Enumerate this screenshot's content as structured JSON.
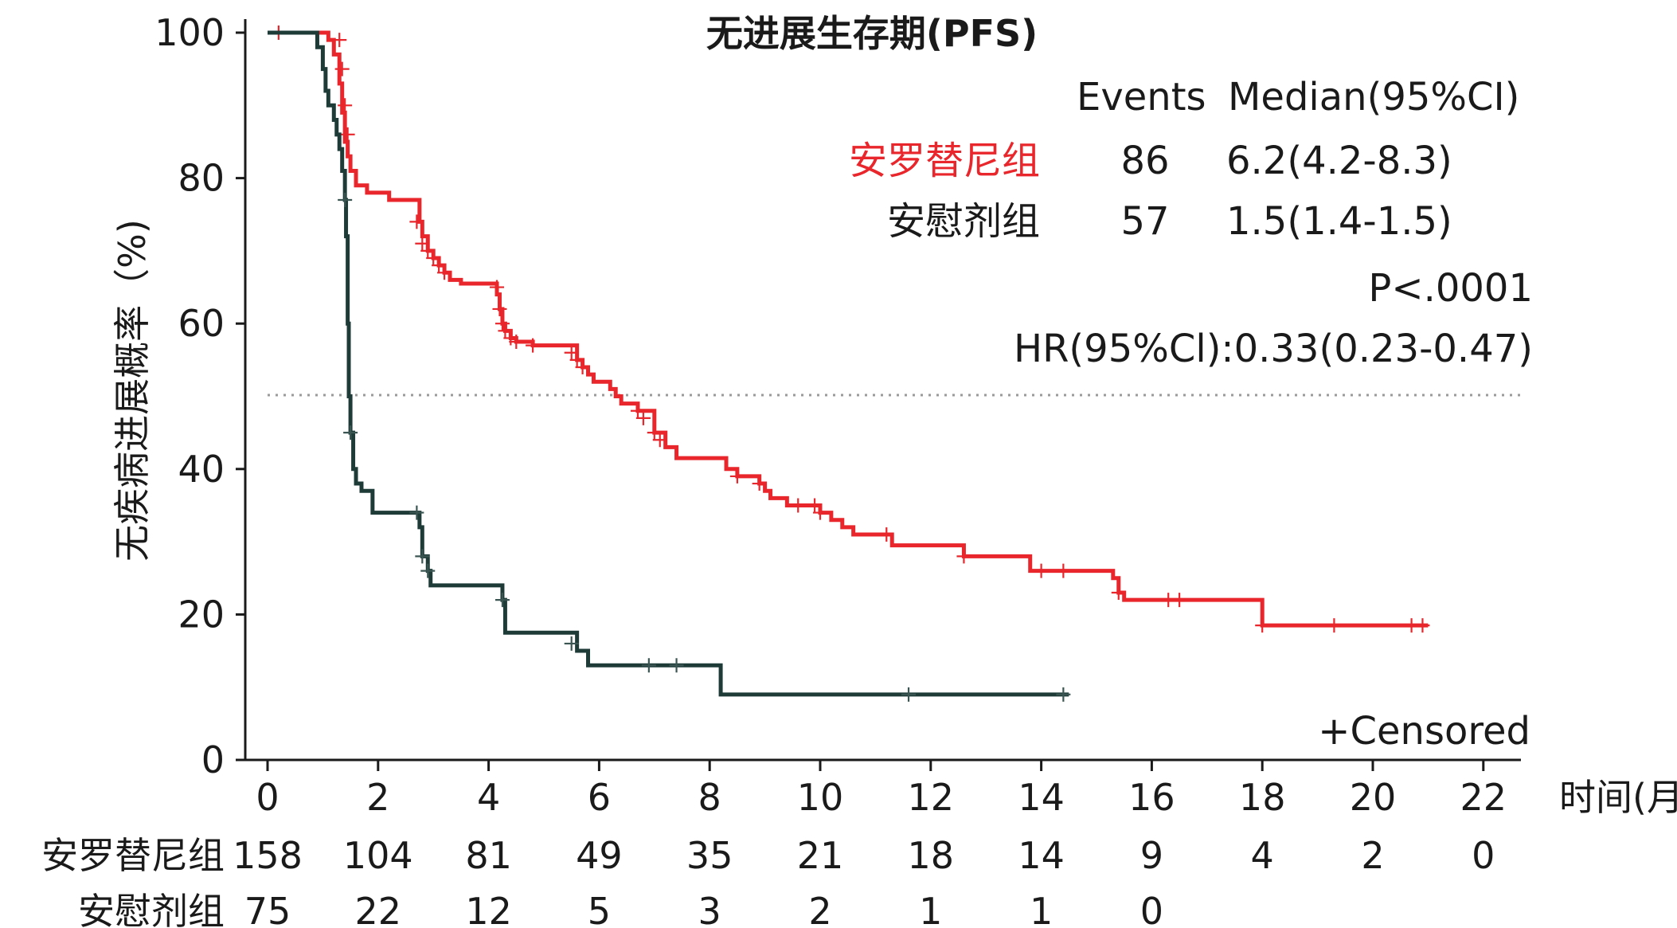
{
  "chart_data": {
    "type": "line",
    "title": "无进展生存期(PFS)",
    "xlabel": "时间(月)",
    "ylabel": "无疾病进展概率（%)",
    "xlim": [
      0,
      22
    ],
    "ylim": [
      0,
      100
    ],
    "x_ticks": [
      "0",
      "2",
      "4",
      "6",
      "8",
      "10",
      "12",
      "14",
      "16",
      "18",
      "20",
      "22"
    ],
    "y_ticks": [
      "0",
      "20",
      "40",
      "60",
      "80",
      "100"
    ],
    "reference_line": 50,
    "legend": {
      "headers": [
        "Events",
        "Median(95%CI)"
      ],
      "rows": [
        {
          "name": "安罗替尼组",
          "events": "86",
          "median": "6.2(4.2-8.3)",
          "color": "#e8262b"
        },
        {
          "name": "安慰剂组",
          "events": "57",
          "median": "1.5(1.4-1.5)",
          "color": "#1e3b38"
        }
      ],
      "p_value": "P<.0001",
      "hr": "HR(95%Cl):0.33(0.23-0.47)"
    },
    "censored_label": "+Censored",
    "series": [
      {
        "name": "安罗替尼组",
        "color": "#e8262b",
        "step_points": [
          [
            0,
            100
          ],
          [
            1.0,
            100
          ],
          [
            1.1,
            99
          ],
          [
            1.2,
            97
          ],
          [
            1.3,
            93
          ],
          [
            1.35,
            89
          ],
          [
            1.4,
            85
          ],
          [
            1.45,
            83
          ],
          [
            1.5,
            81
          ],
          [
            1.6,
            79
          ],
          [
            1.8,
            78
          ],
          [
            2.2,
            77
          ],
          [
            2.7,
            77
          ],
          [
            2.75,
            74
          ],
          [
            2.8,
            72
          ],
          [
            2.9,
            70
          ],
          [
            3.0,
            69
          ],
          [
            3.1,
            68
          ],
          [
            3.2,
            67
          ],
          [
            3.3,
            66
          ],
          [
            3.5,
            65.5
          ],
          [
            4.1,
            65.5
          ],
          [
            4.15,
            64
          ],
          [
            4.2,
            62
          ],
          [
            4.25,
            60
          ],
          [
            4.3,
            59
          ],
          [
            4.4,
            58
          ],
          [
            4.5,
            57.5
          ],
          [
            4.8,
            57
          ],
          [
            5.5,
            57
          ],
          [
            5.6,
            55
          ],
          [
            5.7,
            54
          ],
          [
            5.8,
            53
          ],
          [
            5.9,
            52
          ],
          [
            6.2,
            51
          ],
          [
            6.3,
            50
          ],
          [
            6.4,
            49
          ],
          [
            6.7,
            48
          ],
          [
            7.0,
            45
          ],
          [
            7.2,
            43
          ],
          [
            7.4,
            41.5
          ],
          [
            8.2,
            41.5
          ],
          [
            8.3,
            40
          ],
          [
            8.5,
            39
          ],
          [
            8.9,
            38
          ],
          [
            9.0,
            37
          ],
          [
            9.1,
            36
          ],
          [
            9.4,
            35
          ],
          [
            9.9,
            35
          ],
          [
            10.0,
            34
          ],
          [
            10.2,
            33
          ],
          [
            10.4,
            32
          ],
          [
            10.6,
            31
          ],
          [
            11.2,
            31
          ],
          [
            11.3,
            29.5
          ],
          [
            12.5,
            29.5
          ],
          [
            12.6,
            28
          ],
          [
            13.7,
            28
          ],
          [
            13.8,
            26
          ],
          [
            15.2,
            26
          ],
          [
            15.3,
            25
          ],
          [
            15.4,
            23
          ],
          [
            15.5,
            22
          ],
          [
            17.9,
            22
          ],
          [
            18.0,
            18.5
          ],
          [
            21.0,
            18.5
          ]
        ],
        "censored": [
          [
            0.2,
            100
          ],
          [
            1.3,
            99
          ],
          [
            1.35,
            95
          ],
          [
            1.4,
            90
          ],
          [
            1.45,
            86
          ],
          [
            2.7,
            74
          ],
          [
            2.8,
            71
          ],
          [
            2.9,
            70
          ],
          [
            3.0,
            69
          ],
          [
            3.1,
            68
          ],
          [
            3.2,
            67
          ],
          [
            4.15,
            65
          ],
          [
            4.2,
            62
          ],
          [
            4.25,
            60
          ],
          [
            4.3,
            59
          ],
          [
            4.4,
            58
          ],
          [
            4.5,
            57.5
          ],
          [
            4.8,
            57
          ],
          [
            5.5,
            56
          ],
          [
            5.6,
            55
          ],
          [
            5.7,
            54
          ],
          [
            6.7,
            48
          ],
          [
            6.8,
            47
          ],
          [
            7.0,
            45
          ],
          [
            7.1,
            44
          ],
          [
            8.5,
            39
          ],
          [
            8.9,
            38
          ],
          [
            9.6,
            35
          ],
          [
            9.9,
            35
          ],
          [
            10.0,
            34
          ],
          [
            11.2,
            31
          ],
          [
            12.6,
            28
          ],
          [
            14.0,
            26
          ],
          [
            14.4,
            26
          ],
          [
            15.4,
            23
          ],
          [
            16.3,
            22
          ],
          [
            16.5,
            22
          ],
          [
            18.0,
            18.5
          ],
          [
            19.3,
            18.5
          ],
          [
            20.7,
            18.5
          ],
          [
            20.9,
            18.5
          ]
        ]
      },
      {
        "name": "安慰剂组",
        "color": "#1e3b38",
        "step_points": [
          [
            0,
            100
          ],
          [
            0.8,
            100
          ],
          [
            0.9,
            98
          ],
          [
            1.0,
            95
          ],
          [
            1.05,
            92
          ],
          [
            1.1,
            90
          ],
          [
            1.2,
            88
          ],
          [
            1.25,
            86
          ],
          [
            1.3,
            84
          ],
          [
            1.35,
            81
          ],
          [
            1.4,
            77
          ],
          [
            1.42,
            72
          ],
          [
            1.45,
            60
          ],
          [
            1.47,
            50
          ],
          [
            1.5,
            45
          ],
          [
            1.55,
            40
          ],
          [
            1.6,
            38
          ],
          [
            1.7,
            37
          ],
          [
            1.85,
            37
          ],
          [
            1.9,
            34
          ],
          [
            2.7,
            34
          ],
          [
            2.75,
            32
          ],
          [
            2.8,
            28
          ],
          [
            2.9,
            26
          ],
          [
            2.95,
            24
          ],
          [
            4.2,
            24
          ],
          [
            4.25,
            22
          ],
          [
            4.3,
            17.5
          ],
          [
            5.5,
            17.5
          ],
          [
            5.6,
            15
          ],
          [
            5.8,
            13
          ],
          [
            8.1,
            13
          ],
          [
            8.2,
            9
          ],
          [
            14.5,
            9
          ]
        ],
        "censored": [
          [
            1.4,
            77
          ],
          [
            1.5,
            45
          ],
          [
            2.7,
            34
          ],
          [
            2.8,
            28
          ],
          [
            2.9,
            26
          ],
          [
            4.25,
            22
          ],
          [
            5.5,
            16
          ],
          [
            6.9,
            13
          ],
          [
            7.4,
            13
          ],
          [
            11.6,
            9
          ],
          [
            14.4,
            9
          ]
        ]
      }
    ],
    "risk_table": {
      "rows": [
        {
          "label": "安罗替尼组",
          "values": [
            "158",
            "104",
            "81",
            "49",
            "35",
            "21",
            "18",
            "14",
            "9",
            "4",
            "2",
            "0"
          ]
        },
        {
          "label": "安慰剂组",
          "values": [
            "75",
            "22",
            "12",
            "5",
            "3",
            "2",
            "1",
            "1",
            "0"
          ]
        }
      ]
    }
  }
}
